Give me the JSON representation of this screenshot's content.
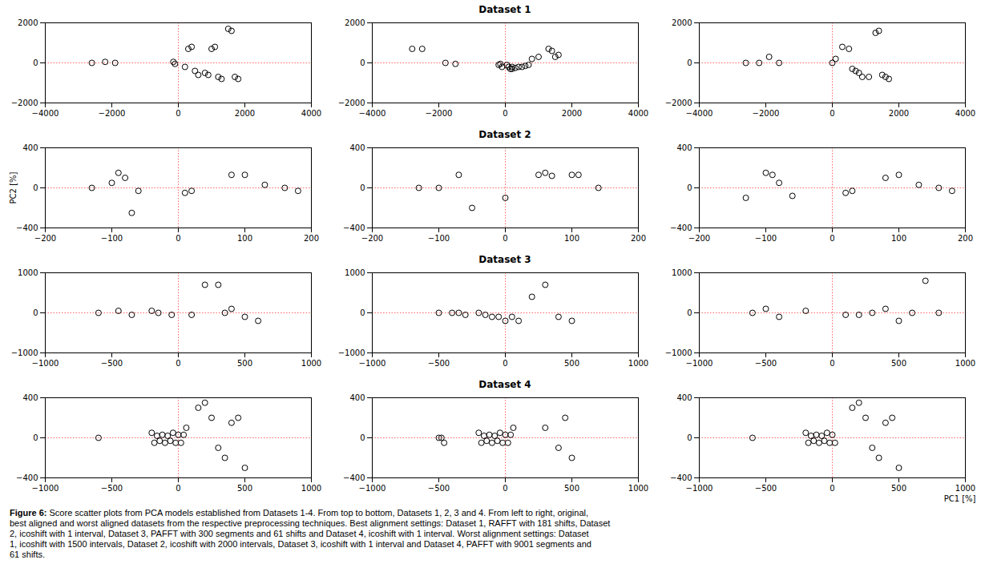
{
  "chart_data": [
    {
      "type": "scatter",
      "xlim": [
        -4000,
        4000
      ],
      "ylim": [
        -2000,
        2000
      ],
      "xticks": [
        -4000,
        -2000,
        0,
        2000,
        4000
      ],
      "yticks": [
        -2000,
        0,
        2000
      ],
      "grid": false,
      "color": "black",
      "marker": "hollow",
      "x": [
        -2600,
        -2200,
        -1900,
        -150,
        -100,
        200,
        300,
        400,
        500,
        600,
        800,
        900,
        1000,
        1100,
        1200,
        1300,
        1500,
        1600,
        1700,
        1800
      ],
      "values": [
        0,
        50,
        0,
        50,
        -50,
        -200,
        700,
        800,
        -400,
        -600,
        -500,
        -600,
        700,
        800,
        -700,
        -800,
        1700,
        1600,
        -700,
        -800
      ],
      "annotations": [
        {
          "type": "hline",
          "y": 0,
          "color": "#ff6666",
          "line_style": "dotted"
        },
        {
          "type": "vline",
          "x": 0,
          "color": "#ff6666",
          "line_style": "dotted"
        }
      ]
    },
    {
      "type": "scatter",
      "title": "Dataset 1",
      "xlim": [
        -4000,
        4000
      ],
      "ylim": [
        -2000,
        2000
      ],
      "xticks": [
        -4000,
        -2000,
        0,
        2000,
        4000
      ],
      "yticks": [
        -2000,
        0,
        2000
      ],
      "grid": false,
      "color": "black",
      "marker": "hollow",
      "x": [
        -2800,
        -2500,
        -1800,
        -1500,
        -200,
        -150,
        -100,
        50,
        100,
        150,
        200,
        200,
        300,
        400,
        500,
        600,
        700,
        800,
        1000,
        1300,
        1400,
        1500,
        1600
      ],
      "values": [
        700,
        700,
        0,
        -50,
        -100,
        -50,
        -200,
        -100,
        -200,
        -300,
        -200,
        -300,
        -250,
        -200,
        -200,
        -150,
        -100,
        200,
        300,
        700,
        600,
        300,
        400
      ],
      "annotations": [
        {
          "type": "hline",
          "y": 0,
          "color": "#ff6666",
          "line_style": "dotted"
        },
        {
          "type": "vline",
          "x": 0,
          "color": "#ff6666",
          "line_style": "dotted"
        }
      ]
    },
    {
      "type": "scatter",
      "xlim": [
        -4000,
        4000
      ],
      "ylim": [
        -2000,
        2000
      ],
      "xticks": [
        -4000,
        -2000,
        0,
        2000,
        4000
      ],
      "yticks": [
        -2000,
        0,
        2000
      ],
      "grid": false,
      "color": "black",
      "marker": "hollow",
      "x": [
        -2600,
        -2200,
        -1900,
        -1600,
        0,
        100,
        300,
        500,
        600,
        700,
        800,
        900,
        1100,
        1300,
        1400,
        1500,
        1600,
        1700
      ],
      "values": [
        0,
        0,
        300,
        0,
        0,
        200,
        800,
        700,
        -300,
        -400,
        -500,
        -700,
        -700,
        1500,
        1600,
        -600,
        -700,
        -800
      ],
      "annotations": [
        {
          "type": "hline",
          "y": 0,
          "color": "#ff6666",
          "line_style": "dotted"
        },
        {
          "type": "vline",
          "x": 0,
          "color": "#ff6666",
          "line_style": "dotted"
        }
      ]
    },
    {
      "type": "scatter",
      "ylabel": "PC2 [%]",
      "xlim": [
        -200,
        200
      ],
      "ylim": [
        -400,
        400
      ],
      "xticks": [
        -200,
        -100,
        0,
        100,
        200
      ],
      "yticks": [
        -400,
        0,
        400
      ],
      "grid": false,
      "color": "black",
      "marker": "hollow",
      "x": [
        -130,
        -100,
        -90,
        -80,
        -70,
        -60,
        10,
        20,
        80,
        100,
        130,
        160,
        180
      ],
      "values": [
        0,
        50,
        150,
        100,
        -250,
        -30,
        -50,
        -30,
        130,
        130,
        30,
        0,
        -30
      ],
      "annotations": [
        {
          "type": "hline",
          "y": 0,
          "color": "#ff6666",
          "line_style": "dotted"
        },
        {
          "type": "vline",
          "x": 0,
          "color": "#ff6666",
          "line_style": "dotted"
        }
      ]
    },
    {
      "type": "scatter",
      "title": "Dataset 2",
      "xlim": [
        -200,
        200
      ],
      "ylim": [
        -400,
        400
      ],
      "xticks": [
        -200,
        -100,
        0,
        100,
        200
      ],
      "yticks": [
        -400,
        0,
        400
      ],
      "grid": false,
      "color": "black",
      "marker": "hollow",
      "x": [
        -130,
        -100,
        -70,
        -50,
        0,
        50,
        60,
        70,
        100,
        110,
        140
      ],
      "values": [
        0,
        0,
        130,
        -200,
        -100,
        130,
        150,
        120,
        130,
        130,
        0
      ],
      "annotations": [
        {
          "type": "hline",
          "y": 0,
          "color": "#ff6666",
          "line_style": "dotted"
        },
        {
          "type": "vline",
          "x": 0,
          "color": "#ff6666",
          "line_style": "dotted"
        }
      ]
    },
    {
      "type": "scatter",
      "xlim": [
        -200,
        200
      ],
      "ylim": [
        -400,
        400
      ],
      "xticks": [
        -200,
        -100,
        0,
        100,
        200
      ],
      "yticks": [
        -400,
        0,
        400
      ],
      "grid": false,
      "color": "black",
      "marker": "hollow",
      "x": [
        -130,
        -100,
        -90,
        -80,
        -60,
        20,
        30,
        80,
        100,
        130,
        160,
        180
      ],
      "values": [
        -100,
        150,
        130,
        50,
        -80,
        -50,
        -30,
        100,
        130,
        30,
        0,
        -30
      ],
      "annotations": [
        {
          "type": "hline",
          "y": 0,
          "color": "#ff6666",
          "line_style": "dotted"
        },
        {
          "type": "vline",
          "x": 0,
          "color": "#ff6666",
          "line_style": "dotted"
        }
      ]
    },
    {
      "type": "scatter",
      "xlim": [
        -1000,
        1000
      ],
      "ylim": [
        -1000,
        1000
      ],
      "xticks": [
        -1000,
        -500,
        0,
        500,
        1000
      ],
      "yticks": [
        -1000,
        0,
        1000
      ],
      "grid": false,
      "color": "black",
      "marker": "hollow",
      "x": [
        -600,
        -450,
        -350,
        -200,
        -150,
        -50,
        100,
        200,
        300,
        350,
        400,
        500,
        600
      ],
      "values": [
        0,
        50,
        -50,
        50,
        0,
        -50,
        -50,
        700,
        700,
        0,
        100,
        -100,
        -200
      ],
      "annotations": [
        {
          "type": "hline",
          "y": 0,
          "color": "#ff6666",
          "line_style": "dotted"
        },
        {
          "type": "vline",
          "x": 0,
          "color": "#ff6666",
          "line_style": "dotted"
        }
      ]
    },
    {
      "type": "scatter",
      "title": "Dataset 3",
      "xlim": [
        -1000,
        1000
      ],
      "ylim": [
        -1000,
        1000
      ],
      "xticks": [
        -1000,
        -500,
        0,
        500,
        1000
      ],
      "yticks": [
        -1000,
        0,
        1000
      ],
      "grid": false,
      "color": "black",
      "marker": "hollow",
      "x": [
        -500,
        -400,
        -350,
        -300,
        -200,
        -150,
        -100,
        -50,
        0,
        50,
        100,
        200,
        300,
        400,
        500
      ],
      "values": [
        0,
        0,
        0,
        -50,
        0,
        -50,
        -100,
        -100,
        -200,
        -100,
        -200,
        400,
        700,
        -100,
        -200
      ],
      "annotations": [
        {
          "type": "hline",
          "y": 0,
          "color": "#ff6666",
          "line_style": "dotted"
        },
        {
          "type": "vline",
          "x": 0,
          "color": "#ff6666",
          "line_style": "dotted"
        }
      ]
    },
    {
      "type": "scatter",
      "xlim": [
        -1000,
        1000
      ],
      "ylim": [
        -1000,
        1000
      ],
      "xticks": [
        -1000,
        -500,
        0,
        500,
        1000
      ],
      "yticks": [
        -1000,
        0,
        1000
      ],
      "grid": false,
      "color": "black",
      "marker": "hollow",
      "x": [
        -600,
        -500,
        -400,
        -200,
        100,
        200,
        300,
        400,
        500,
        600,
        700,
        800
      ],
      "values": [
        0,
        100,
        -100,
        50,
        -50,
        -50,
        0,
        100,
        -200,
        0,
        800,
        0
      ],
      "annotations": [
        {
          "type": "hline",
          "y": 0,
          "color": "#ff6666",
          "line_style": "dotted"
        },
        {
          "type": "vline",
          "x": 0,
          "color": "#ff6666",
          "line_style": "dotted"
        }
      ]
    },
    {
      "type": "scatter",
      "xlim": [
        -1000,
        1000
      ],
      "ylim": [
        -400,
        400
      ],
      "xticks": [
        -1000,
        -500,
        0,
        500,
        1000
      ],
      "yticks": [
        -400,
        0,
        400
      ],
      "grid": false,
      "color": "black",
      "marker": "hollow",
      "x": [
        -600,
        -200,
        -180,
        -160,
        -140,
        -120,
        -100,
        -80,
        -60,
        -40,
        -20,
        0,
        20,
        40,
        60,
        150,
        200,
        250,
        300,
        350,
        400,
        450,
        500
      ],
      "values": [
        0,
        50,
        -50,
        20,
        -30,
        30,
        -50,
        20,
        -30,
        50,
        -50,
        30,
        -50,
        30,
        100,
        300,
        350,
        200,
        -100,
        -200,
        150,
        200,
        -300
      ],
      "annotations": [
        {
          "type": "hline",
          "y": 0,
          "color": "#ff6666",
          "line_style": "dotted"
        },
        {
          "type": "vline",
          "x": 0,
          "color": "#ff6666",
          "line_style": "dotted"
        }
      ]
    },
    {
      "type": "scatter",
      "title": "Dataset 4",
      "xlim": [
        -1000,
        1000
      ],
      "ylim": [
        -400,
        400
      ],
      "xticks": [
        -1000,
        -500,
        0,
        500,
        1000
      ],
      "yticks": [
        -400,
        0,
        400
      ],
      "grid": false,
      "color": "black",
      "marker": "hollow",
      "x": [
        -500,
        -480,
        -460,
        -200,
        -180,
        -160,
        -140,
        -120,
        -100,
        -80,
        -60,
        -40,
        -20,
        0,
        20,
        40,
        60,
        300,
        400,
        450,
        500
      ],
      "values": [
        0,
        0,
        -50,
        50,
        -50,
        20,
        -30,
        30,
        -50,
        20,
        -30,
        50,
        -50,
        30,
        -50,
        30,
        100,
        100,
        -100,
        200,
        -200
      ],
      "annotations": [
        {
          "type": "hline",
          "y": 0,
          "color": "#ff6666",
          "line_style": "dotted"
        },
        {
          "type": "vline",
          "x": 0,
          "color": "#ff6666",
          "line_style": "dotted"
        }
      ]
    },
    {
      "type": "scatter",
      "xlabel": "PC1 [%]",
      "xlim": [
        -1000,
        1000
      ],
      "ylim": [
        -400,
        400
      ],
      "xticks": [
        -1000,
        -500,
        0,
        500,
        1000
      ],
      "yticks": [
        -400,
        0,
        400
      ],
      "grid": false,
      "color": "black",
      "marker": "hollow",
      "x": [
        -600,
        -200,
        -180,
        -160,
        -140,
        -120,
        -100,
        -80,
        -60,
        -40,
        -20,
        0,
        20,
        150,
        200,
        250,
        300,
        350,
        400,
        450,
        500
      ],
      "values": [
        0,
        50,
        -50,
        20,
        -30,
        30,
        -50,
        20,
        -30,
        50,
        -50,
        30,
        -50,
        300,
        350,
        200,
        -100,
        -200,
        150,
        200,
        -300
      ],
      "annotations": [
        {
          "type": "hline",
          "y": 0,
          "color": "#ff6666",
          "line_style": "dotted"
        },
        {
          "type": "vline",
          "x": 0,
          "color": "#ff6666",
          "line_style": "dotted"
        }
      ]
    }
  ],
  "caption": {
    "title": "Figure 6:",
    "text": " Score scatter plots from PCA models established from Datasets 1-4. From top to bottom, Datasets 1, 2, 3 and 4. From left to right, original,\nbest aligned and worst aligned datasets from the respective preprocessing techniques. Best alignment settings: Dataset 1, RAFFT with 181 shifts, Dataset\n2, icoshift with 1 interval, Dataset 3, PAFFT with 300 segments and 61 shifts and Dataset 4, icoshift with 1 interval. Worst alignment settings: Dataset\n1, icoshift with 1500 intervals, Dataset 2, icoshift with 2000 intervals, Dataset 3, icoshift with 1 interval and Dataset 4, PAFFT with 9001 segments and\n61 shifts."
  }
}
